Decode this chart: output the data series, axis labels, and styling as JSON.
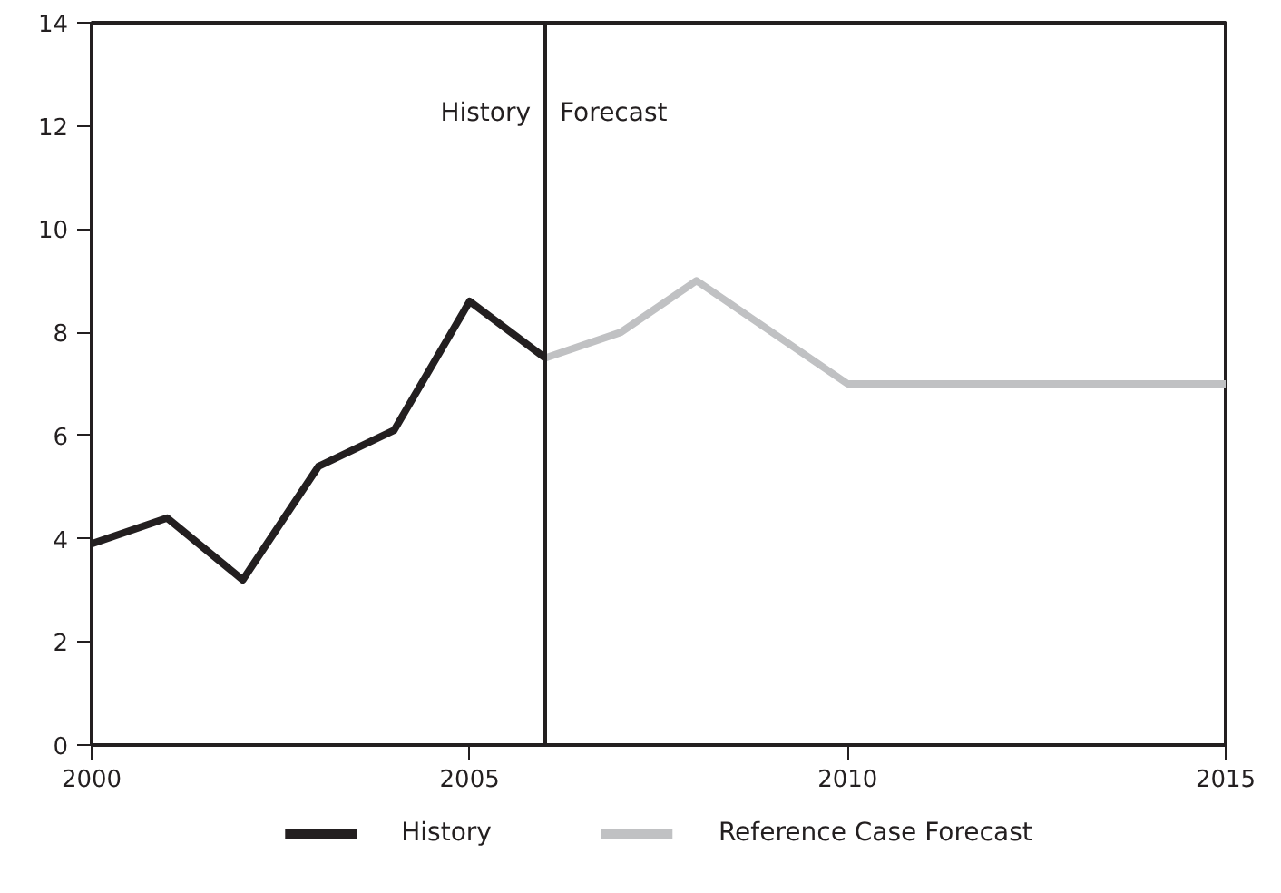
{
  "chart_data": {
    "type": "line",
    "xlim": [
      2000,
      2015
    ],
    "ylim": [
      0,
      14
    ],
    "xticks": [
      2000,
      2005,
      2010,
      2015
    ],
    "yticks": [
      0,
      2,
      4,
      6,
      8,
      10,
      12,
      14
    ],
    "grid": false,
    "legend": "bottom",
    "marker": "none",
    "line_style": "solid",
    "series": [
      {
        "name": "History",
        "color": "#231f20",
        "x": [
          2000,
          2001,
          2002,
          2003,
          2004,
          2005,
          2006
        ],
        "values": [
          3.9,
          4.4,
          3.2,
          5.4,
          6.1,
          8.6,
          7.5
        ]
      },
      {
        "name": "Reference Case Forecast",
        "color": "#c0c1c3",
        "x": [
          2006,
          2007,
          2008,
          2010,
          2015
        ],
        "values": [
          7.5,
          8.0,
          9.0,
          7.0,
          7.0
        ]
      }
    ],
    "ref_lines": [
      {
        "axis": "x",
        "value": 2006,
        "color": "#231f20"
      }
    ],
    "annotations": [
      "History",
      "Forecast"
    ]
  }
}
